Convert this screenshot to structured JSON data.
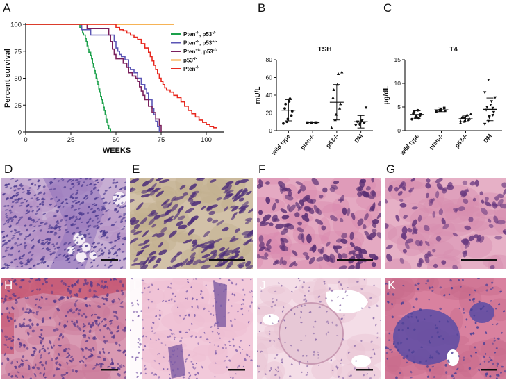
{
  "panels": {
    "A": "A",
    "B": "B",
    "C": "C",
    "D": "D",
    "E": "E",
    "F": "F",
    "G": "G",
    "H": "H",
    "I": "I",
    "J": "J",
    "K": "K"
  },
  "chart_data": [
    {
      "type": "line",
      "panel": "A",
      "chart_style": "kaplan-meier step curves",
      "title": "",
      "xlabel": "WEEKS",
      "ylabel": "Percent survival",
      "xlim": [
        0,
        110
      ],
      "ylim": [
        0,
        100
      ],
      "xticks": [
        0,
        25,
        50,
        75,
        100
      ],
      "yticks": [
        0,
        25,
        50,
        75,
        100
      ],
      "legend_position": "right",
      "series": [
        {
          "name": "Pten",
          "sup": "-/-",
          "name2": ", p53",
          "sup2": "-/-",
          "color": "#1aa04a",
          "points": [
            [
              0,
              100
            ],
            [
              29,
              100
            ],
            [
              30,
              97
            ],
            [
              31,
              95
            ],
            [
              31.5,
              92
            ],
            [
              32,
              90
            ],
            [
              33,
              87
            ],
            [
              33.5,
              84
            ],
            [
              34,
              80
            ],
            [
              34.5,
              77
            ],
            [
              35,
              74
            ],
            [
              36,
              71
            ],
            [
              36.5,
              68
            ],
            [
              37,
              64
            ],
            [
              37.5,
              60
            ],
            [
              38,
              57
            ],
            [
              38.5,
              54
            ],
            [
              39,
              50
            ],
            [
              39.5,
              47
            ],
            [
              40,
              44
            ],
            [
              40.5,
              40
            ],
            [
              41,
              37
            ],
            [
              41.5,
              33
            ],
            [
              42,
              30
            ],
            [
              42.5,
              27
            ],
            [
              43,
              23
            ],
            [
              43.5,
              20
            ],
            [
              44,
              16
            ],
            [
              44.5,
              12
            ],
            [
              45,
              9
            ],
            [
              45.5,
              6
            ],
            [
              46,
              3
            ],
            [
              47,
              0
            ]
          ]
        },
        {
          "name": "Pten",
          "sup": "-/-",
          "name2": ", p53",
          "sup2": "+/-",
          "color": "#5b55b5",
          "points": [
            [
              0,
              100
            ],
            [
              30,
              100
            ],
            [
              31,
              95
            ],
            [
              35,
              95
            ],
            [
              36,
              90
            ],
            [
              48,
              90
            ],
            [
              49,
              84
            ],
            [
              50,
              78
            ],
            [
              51,
              75
            ],
            [
              52,
              72
            ],
            [
              53,
              70
            ],
            [
              55,
              67
            ],
            [
              57,
              60
            ],
            [
              58,
              58
            ],
            [
              60,
              55
            ],
            [
              62,
              50
            ],
            [
              64,
              44
            ],
            [
              66,
              40
            ],
            [
              67,
              36
            ],
            [
              68,
              30
            ],
            [
              70,
              22
            ],
            [
              71,
              16
            ],
            [
              72,
              10
            ],
            [
              73,
              5
            ],
            [
              74,
              0
            ]
          ]
        },
        {
          "name": "Pten",
          "sup": "+/-",
          "name2": ", p53",
          "sup2": "-/-",
          "color": "#7a1f5c",
          "points": [
            [
              0,
              100
            ],
            [
              33,
              100
            ],
            [
              34,
              96
            ],
            [
              45,
              96
            ],
            [
              46,
              90
            ],
            [
              47,
              84
            ],
            [
              48,
              77
            ],
            [
              49,
              72
            ],
            [
              50,
              68
            ],
            [
              53,
              68
            ],
            [
              54,
              64
            ],
            [
              56,
              60
            ],
            [
              57,
              55
            ],
            [
              59,
              52
            ],
            [
              61,
              50
            ],
            [
              62,
              47
            ],
            [
              63,
              42
            ],
            [
              64,
              38
            ],
            [
              65,
              34
            ],
            [
              66,
              30
            ],
            [
              68,
              24
            ],
            [
              70,
              18
            ],
            [
              72,
              12
            ],
            [
              74,
              6
            ],
            [
              75,
              0
            ]
          ]
        },
        {
          "name": "p53",
          "sup": "-/-",
          "name2": "",
          "sup2": "",
          "color": "#f39a1f",
          "points": [
            [
              0,
              100
            ],
            [
              82,
              100
            ]
          ]
        },
        {
          "name": "Pten",
          "sup": "-/-",
          "name2": "",
          "sup2": "",
          "color": "#e8281f",
          "points": [
            [
              0,
              100
            ],
            [
              49,
              100
            ],
            [
              50,
              97
            ],
            [
              52,
              95
            ],
            [
              54,
              94
            ],
            [
              56,
              92
            ],
            [
              58,
              90
            ],
            [
              60,
              88
            ],
            [
              62,
              86
            ],
            [
              64,
              82
            ],
            [
              66,
              78
            ],
            [
              68,
              74
            ],
            [
              69,
              70
            ],
            [
              70,
              66
            ],
            [
              71,
              62
            ],
            [
              72,
              58
            ],
            [
              73,
              54
            ],
            [
              74,
              50
            ],
            [
              75,
              47
            ],
            [
              76,
              44
            ],
            [
              77,
              41
            ],
            [
              78,
              39
            ],
            [
              80,
              37
            ],
            [
              82,
              34
            ],
            [
              84,
              32
            ],
            [
              86,
              28
            ],
            [
              88,
              24
            ],
            [
              90,
              20
            ],
            [
              92,
              17
            ],
            [
              94,
              14
            ],
            [
              96,
              11
            ],
            [
              98,
              9
            ],
            [
              100,
              7
            ],
            [
              102,
              5
            ],
            [
              104,
              4
            ],
            [
              106,
              4
            ]
          ]
        }
      ]
    },
    {
      "type": "scatter",
      "panel": "B",
      "chart_style": "dot plot with mean and SD",
      "title": "TSH",
      "xlabel": "",
      "ylabel": "mU/L",
      "ylim": [
        0,
        80
      ],
      "yticks": [
        0,
        20,
        40,
        60,
        80
      ],
      "categories": [
        "wild type",
        "pten-/-",
        "p53-/-",
        "DM"
      ],
      "markers": [
        "circle",
        "square",
        "triangle-up",
        "triangle-down"
      ],
      "groups": [
        {
          "category": "wild type",
          "mean": 23,
          "sd": 12,
          "points": [
            8,
            10,
            13,
            17,
            22,
            25,
            30,
            33,
            36
          ]
        },
        {
          "category": "pten-/-",
          "mean": 9,
          "sd": 0,
          "points": [
            9,
            9,
            9,
            9,
            9
          ]
        },
        {
          "category": "p53-/-",
          "mean": 32,
          "sd": 20,
          "points": [
            3,
            12,
            18,
            25,
            30,
            37,
            46,
            52,
            64,
            66
          ]
        },
        {
          "category": "DM",
          "mean": 10,
          "sd": 7,
          "points": [
            6,
            7,
            8,
            9,
            9,
            10,
            10,
            11,
            12,
            26
          ]
        }
      ]
    },
    {
      "type": "scatter",
      "panel": "C",
      "chart_style": "dot plot with mean and SD",
      "title": "T4",
      "xlabel": "",
      "ylabel": "µg/dL",
      "ylim": [
        0,
        15
      ],
      "yticks": [
        0,
        5,
        10,
        15
      ],
      "categories": [
        "wild type",
        "pten-/-",
        "p53-/-",
        "DM"
      ],
      "markers": [
        "circle",
        "square",
        "triangle-up",
        "triangle-down"
      ],
      "groups": [
        {
          "category": "wild type",
          "mean": 3.4,
          "sd": 0.8,
          "points": [
            2.4,
            2.8,
            3.0,
            3.2,
            3.5,
            3.7,
            4.0,
            4.3,
            2.6
          ]
        },
        {
          "category": "pten-/-",
          "mean": 4.4,
          "sd": 0.4,
          "points": [
            4.0,
            4.3,
            4.5,
            4.8,
            4.2
          ]
        },
        {
          "category": "p53-/-",
          "mean": 2.5,
          "sd": 0.6,
          "points": [
            1.6,
            1.9,
            2.1,
            2.3,
            2.5,
            2.7,
            2.9,
            3.1,
            3.3,
            3.5,
            2.0,
            2.6
          ]
        },
        {
          "category": "DM",
          "mean": 4.5,
          "sd": 2.4,
          "points": [
            1.4,
            2.0,
            2.8,
            3.3,
            3.9,
            4.4,
            5.0,
            5.5,
            6.2,
            7.0,
            8.1,
            10.8,
            3.0,
            4.8
          ]
        }
      ]
    }
  ],
  "micrographs": [
    {
      "panel": "D",
      "description_color": "#b49ac9",
      "nuclei_color": "#4b3a8f",
      "has_scale_bar": true
    },
    {
      "panel": "E",
      "description_color": "#c7b6a0",
      "nuclei_color": "#52357a",
      "has_scale_bar": true
    },
    {
      "panel": "F",
      "description_color": "#d497b5",
      "nuclei_color": "#5a2f74",
      "has_scale_bar": true
    },
    {
      "panel": "G",
      "description_color": "#dba2bd",
      "nuclei_color": "#6a3a80",
      "has_scale_bar": true
    },
    {
      "panel": "H",
      "description_color": "#cf8fa8",
      "nuclei_color": "#5a3a8a",
      "has_scale_bar": true
    },
    {
      "panel": "I",
      "description_color": "#e9b7cc",
      "nuclei_color": "#6b4b9a",
      "has_scale_bar": true
    },
    {
      "panel": "J",
      "description_color": "#e8c2d4",
      "nuclei_color": "#7a5aa0",
      "has_scale_bar": true
    },
    {
      "panel": "K",
      "description_color": "#cf6f95",
      "nuclei_color": "#53449a",
      "has_scale_bar": true
    }
  ]
}
